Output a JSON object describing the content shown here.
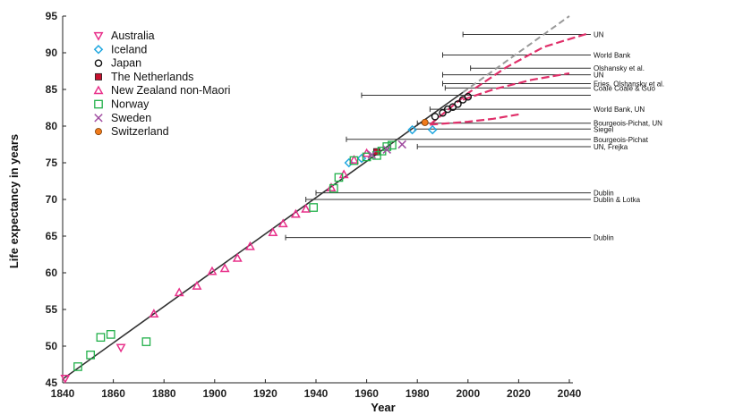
{
  "chart_data": {
    "type": "scatter",
    "xlabel": "Year",
    "ylabel": "Life expectancy in years",
    "xlim": [
      1840,
      2040
    ],
    "ylim": [
      45,
      95
    ],
    "xticks": [
      1840,
      1860,
      1880,
      1900,
      1920,
      1940,
      1960,
      1980,
      2000,
      2020,
      2040
    ],
    "yticks": [
      45,
      50,
      55,
      60,
      65,
      70,
      75,
      80,
      85,
      90,
      95
    ],
    "grid": false,
    "legend_position": "top-left",
    "trend_line": {
      "x": [
        1840,
        2040
      ],
      "y": [
        45.5,
        95
      ]
    },
    "projection_curves": [
      {
        "x": [
          1985,
          2000,
          2015,
          2030,
          2047
        ],
        "y": [
          80.2,
          84.5,
          88.0,
          90.8,
          92.6
        ]
      },
      {
        "x": [
          1998,
          2010,
          2025,
          2040
        ],
        "y": [
          83.6,
          85.0,
          86.3,
          87.2
        ]
      },
      {
        "x": [
          1985,
          2000,
          2010,
          2020
        ],
        "y": [
          80.2,
          80.6,
          81.0,
          81.6
        ]
      }
    ],
    "series": [
      {
        "name": "Australia",
        "marker": "triangle-down",
        "color": "#e8308a",
        "points": [
          [
            1841,
            45.6
          ],
          [
            1863,
            49.8
          ]
        ]
      },
      {
        "name": "Iceland",
        "marker": "diamond",
        "color": "#22a8e0",
        "points": [
          [
            1953,
            75.0
          ],
          [
            1958,
            75.6
          ],
          [
            1978,
            79.5
          ],
          [
            1986,
            79.5
          ]
        ]
      },
      {
        "name": "Japan",
        "marker": "circle",
        "color": "#111111",
        "points": [
          [
            1987,
            81.3
          ],
          [
            1990,
            81.8
          ],
          [
            1992,
            82.3
          ],
          [
            1994,
            82.6
          ],
          [
            1996,
            83.0
          ],
          [
            1998,
            83.6
          ],
          [
            2000,
            84.0
          ]
        ]
      },
      {
        "name": "The Netherlands",
        "marker": "square-filled",
        "color": "#c8102e",
        "points": [
          [
            1964,
            76.5
          ]
        ]
      },
      {
        "name": "New Zealand non-Maori",
        "marker": "triangle-up",
        "color": "#e8308a",
        "points": [
          [
            1876,
            54.4
          ],
          [
            1886,
            57.3
          ],
          [
            1893,
            58.2
          ],
          [
            1899,
            60.2
          ],
          [
            1904,
            60.6
          ],
          [
            1909,
            62.0
          ],
          [
            1914,
            63.6
          ],
          [
            1923,
            65.5
          ],
          [
            1927,
            66.7
          ],
          [
            1932,
            68.0
          ],
          [
            1936,
            68.7
          ],
          [
            1946,
            71.6
          ],
          [
            1951,
            73.4
          ],
          [
            1955,
            75.4
          ],
          [
            1960,
            76.3
          ]
        ]
      },
      {
        "name": "Norway",
        "marker": "square-open",
        "color": "#22b04a",
        "points": [
          [
            1846,
            47.2
          ],
          [
            1851,
            48.8
          ],
          [
            1855,
            51.2
          ],
          [
            1859,
            51.6
          ],
          [
            1873,
            50.6
          ],
          [
            1939,
            68.9
          ],
          [
            1947,
            71.5
          ],
          [
            1949,
            73.0
          ],
          [
            1955,
            75.3
          ],
          [
            1960,
            75.8
          ],
          [
            1964,
            76.0
          ],
          [
            1966,
            76.6
          ],
          [
            1968,
            77.2
          ],
          [
            1970,
            77.4
          ]
        ]
      },
      {
        "name": "Sweden",
        "marker": "x",
        "color": "#a04ca0",
        "points": [
          [
            1962,
            76.1
          ],
          [
            1968,
            76.8
          ],
          [
            1974,
            77.5
          ]
        ]
      },
      {
        "name": "Switzerland",
        "marker": "circle-filled",
        "color": "#f07a1a",
        "points": [
          [
            1983,
            80.5
          ]
        ]
      }
    ],
    "forecasts": [
      {
        "label": "UN",
        "year": 1998,
        "value": 92.5
      },
      {
        "label": "World Bank",
        "year": 1990,
        "value": 89.7
      },
      {
        "label": "Olshansky et al.",
        "year": 2001,
        "value": 87.9
      },
      {
        "label": "UN",
        "year": 1990,
        "value": 87.0
      },
      {
        "label": "Fries, Olshansky et al.",
        "year": 1990,
        "value": 85.8
      },
      {
        "label": "Coale    Coale & Guo",
        "year": 1991,
        "value": 85.2
      },
      {
        "label": "",
        "year": 1958,
        "value": 84.2
      },
      {
        "label": "World Bank, UN",
        "year": 1985,
        "value": 82.3
      },
      {
        "label": "Bourgeois-Pichat, UN",
        "year": 1980,
        "value": 80.4
      },
      {
        "label": "Siegel",
        "year": 1979,
        "value": 79.6
      },
      {
        "label": "Bourgeois-Pichat",
        "year": 1952,
        "value": 78.2
      },
      {
        "label": "UN, Frejka",
        "year": 1980,
        "value": 77.2
      },
      {
        "label": "Dublin",
        "year": 1940,
        "value": 70.9
      },
      {
        "label": "Dublin & Lotka",
        "year": 1936,
        "value": 70.0
      },
      {
        "label": "Dublin",
        "year": 1928,
        "value": 64.8
      }
    ]
  }
}
